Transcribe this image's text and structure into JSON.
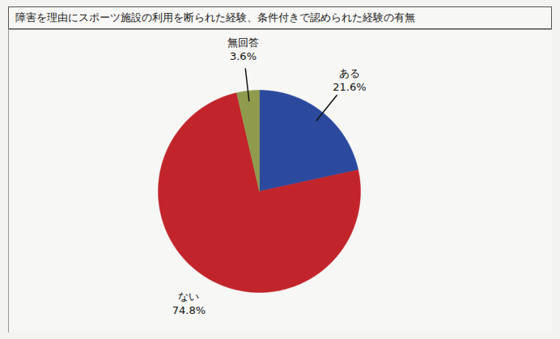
{
  "chart_data": {
    "type": "pie",
    "title": "障害を理由にスポーツ施設の利用を断られた経験、条件付きで認められた経験の有無",
    "categories": [
      "ある",
      "ない",
      "無回答"
    ],
    "values": [
      21.6,
      74.8,
      3.6
    ],
    "value_labels": [
      "21.6%",
      "74.8%",
      "3.6%"
    ],
    "colors": [
      "#2b4a9e",
      "#c1252b",
      "#8f9a4c"
    ],
    "data_labels": true
  }
}
